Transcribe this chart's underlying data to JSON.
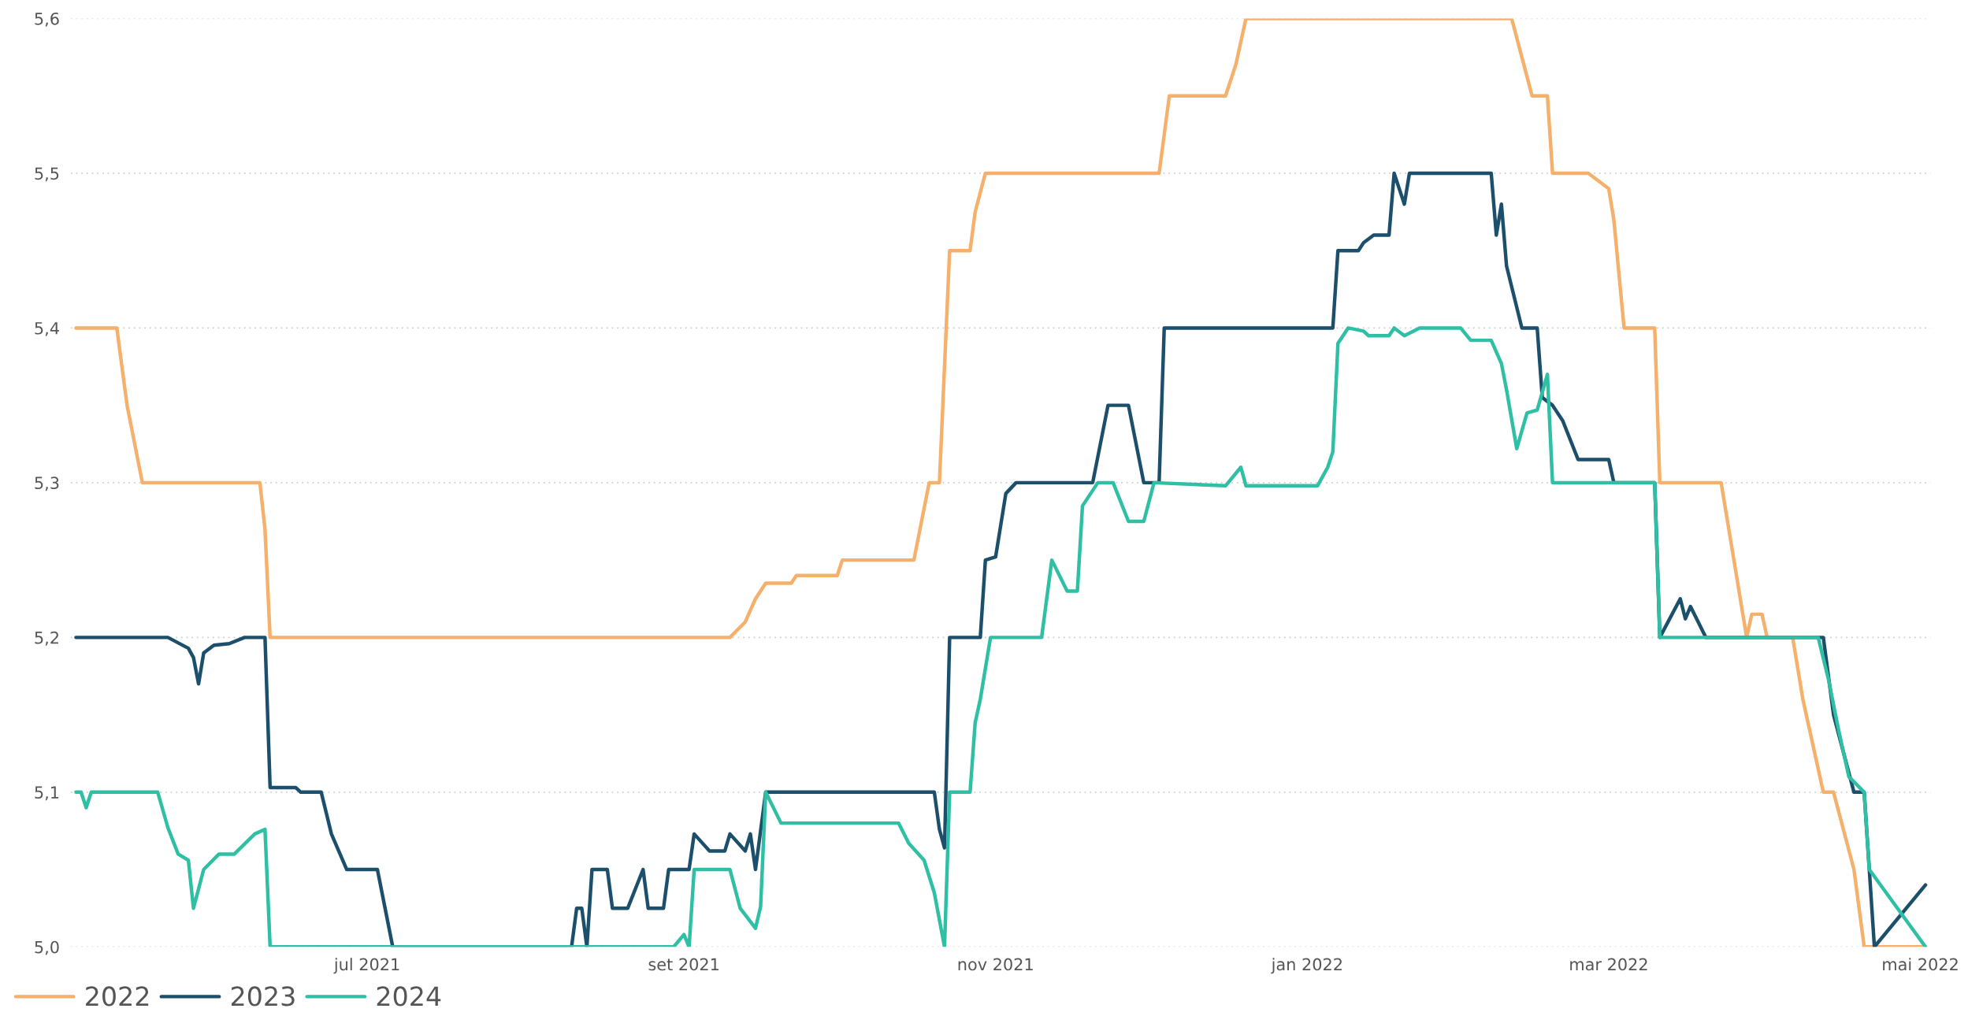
{
  "chart_data": {
    "type": "line",
    "xlim": [
      "2021-05-04",
      "2022-05-03"
    ],
    "xticks": [
      {
        "value": "2021-07-01",
        "label": "jul 2021"
      },
      {
        "value": "2021-09-01",
        "label": "set 2021"
      },
      {
        "value": "2021-11-01",
        "label": "nov 2021"
      },
      {
        "value": "2022-01-01",
        "label": "jan 2022"
      },
      {
        "value": "2022-03-01",
        "label": "mar 2022"
      },
      {
        "value": "2022-05-01",
        "label": "mai 2022"
      }
    ],
    "ylim": [
      5.0,
      5.6
    ],
    "yticks": [
      {
        "value": 5.0,
        "label": "5,0"
      },
      {
        "value": 5.1,
        "label": "5,1"
      },
      {
        "value": 5.2,
        "label": "5,2"
      },
      {
        "value": 5.3,
        "label": "5,3"
      },
      {
        "value": 5.4,
        "label": "5,4"
      },
      {
        "value": 5.5,
        "label": "5,5"
      },
      {
        "value": 5.6,
        "label": "5,6"
      }
    ],
    "grid": "y",
    "legend": "bottom left",
    "marker": "none",
    "line_style": "solid",
    "series": [
      {
        "name": "2022",
        "color": "#f5b06b",
        "x": [
          "2021-05-05",
          "2021-05-13",
          "2021-05-15",
          "2021-05-18",
          "2021-06-10",
          "2021-06-11",
          "2021-06-12",
          "2021-09-10",
          "2021-09-13",
          "2021-09-15",
          "2021-09-17",
          "2021-09-22",
          "2021-09-23",
          "2021-10-01",
          "2021-10-02",
          "2021-10-16",
          "2021-10-19",
          "2021-10-21",
          "2021-10-23",
          "2021-10-27",
          "2021-10-28",
          "2021-10-30",
          "2021-12-03",
          "2021-12-05",
          "2021-12-16",
          "2021-12-18",
          "2021-12-20",
          "2022-02-10",
          "2022-02-12",
          "2022-02-14",
          "2022-02-17",
          "2022-02-18",
          "2022-02-25",
          "2022-03-01",
          "2022-03-02",
          "2022-03-04",
          "2022-03-10",
          "2022-03-11",
          "2022-03-23",
          "2022-03-24",
          "2022-03-26",
          "2022-03-28",
          "2022-03-29",
          "2022-03-31",
          "2022-04-01",
          "2022-04-06",
          "2022-04-08",
          "2022-04-12",
          "2022-04-14",
          "2022-04-18",
          "2022-04-20",
          "2022-05-02"
        ],
        "values": [
          5.4,
          5.4,
          5.35,
          5.3,
          5.3,
          5.27,
          5.2,
          5.2,
          5.21,
          5.225,
          5.235,
          5.235,
          5.24,
          5.24,
          5.25,
          5.25,
          5.3,
          5.3,
          5.45,
          5.45,
          5.475,
          5.5,
          5.5,
          5.55,
          5.55,
          5.57,
          5.6,
          5.6,
          5.575,
          5.55,
          5.55,
          5.5,
          5.5,
          5.49,
          5.47,
          5.4,
          5.4,
          5.3,
          5.3,
          5.28,
          5.24,
          5.2,
          5.215,
          5.215,
          5.2,
          5.2,
          5.16,
          5.1,
          5.1,
          5.05,
          5.0,
          5.0
        ]
      },
      {
        "name": "2023",
        "color": "#1b4f6b",
        "x": [
          "2021-05-05",
          "2021-05-23",
          "2021-05-27",
          "2021-05-28",
          "2021-05-29",
          "2021-05-30",
          "2021-06-01",
          "2021-06-04",
          "2021-06-07",
          "2021-06-11",
          "2021-06-12",
          "2021-06-17",
          "2021-06-18",
          "2021-06-22",
          "2021-06-24",
          "2021-06-27",
          "2021-07-03",
          "2021-07-06",
          "2021-08-10",
          "2021-08-11",
          "2021-08-12",
          "2021-08-13",
          "2021-08-14",
          "2021-08-17",
          "2021-08-18",
          "2021-08-21",
          "2021-08-24",
          "2021-08-25",
          "2021-08-28",
          "2021-08-29",
          "2021-09-02",
          "2021-09-03",
          "2021-09-06",
          "2021-09-09",
          "2021-09-10",
          "2021-09-13",
          "2021-09-14",
          "2021-09-15",
          "2021-09-17",
          "2021-10-20",
          "2021-10-21",
          "2021-10-22",
          "2021-10-23",
          "2021-10-29",
          "2021-10-30",
          "2021-11-01",
          "2021-11-03",
          "2021-11-05",
          "2021-11-20",
          "2021-11-23",
          "2021-11-27",
          "2021-11-30",
          "2021-12-03",
          "2021-12-04",
          "2022-01-06",
          "2022-01-07",
          "2022-01-11",
          "2022-01-12",
          "2022-01-14",
          "2022-01-17",
          "2022-01-18",
          "2022-01-20",
          "2022-01-21",
          "2022-02-06",
          "2022-02-07",
          "2022-02-08",
          "2022-02-09",
          "2022-02-12",
          "2022-02-15",
          "2022-02-16",
          "2022-02-18",
          "2022-02-20",
          "2022-02-23",
          "2022-03-01",
          "2022-03-02",
          "2022-03-10",
          "2022-03-11",
          "2022-03-15",
          "2022-03-16",
          "2022-03-17",
          "2022-03-20",
          "2022-04-12",
          "2022-04-14",
          "2022-04-18",
          "2022-04-20",
          "2022-04-22",
          "2022-05-02"
        ],
        "values": [
          5.2,
          5.2,
          5.193,
          5.187,
          5.17,
          5.19,
          5.195,
          5.196,
          5.2,
          5.2,
          5.103,
          5.103,
          5.1,
          5.1,
          5.073,
          5.05,
          5.05,
          5.0,
          5.0,
          5.025,
          5.025,
          5.0,
          5.05,
          5.05,
          5.025,
          5.025,
          5.05,
          5.025,
          5.025,
          5.05,
          5.05,
          5.073,
          5.062,
          5.062,
          5.073,
          5.062,
          5.073,
          5.05,
          5.1,
          5.1,
          5.076,
          5.064,
          5.2,
          5.2,
          5.25,
          5.252,
          5.293,
          5.3,
          5.3,
          5.35,
          5.35,
          5.3,
          5.3,
          5.4,
          5.4,
          5.45,
          5.45,
          5.455,
          5.46,
          5.46,
          5.5,
          5.48,
          5.5,
          5.5,
          5.46,
          5.48,
          5.44,
          5.4,
          5.4,
          5.355,
          5.35,
          5.34,
          5.315,
          5.315,
          5.3,
          5.3,
          5.2,
          5.225,
          5.212,
          5.22,
          5.2,
          5.2,
          5.15,
          5.1,
          5.1,
          5.0,
          5.04
        ]
      },
      {
        "name": "2024",
        "color": "#2ebfa5",
        "x": [
          "2021-05-05",
          "2021-05-06",
          "2021-05-07",
          "2021-05-08",
          "2021-05-21",
          "2021-05-23",
          "2021-05-25",
          "2021-05-27",
          "2021-05-28",
          "2021-05-30",
          "2021-06-02",
          "2021-06-05",
          "2021-06-09",
          "2021-06-11",
          "2021-06-12",
          "2021-08-30",
          "2021-09-01",
          "2021-09-02",
          "2021-09-03",
          "2021-09-10",
          "2021-09-12",
          "2021-09-15",
          "2021-09-16",
          "2021-09-17",
          "2021-09-20",
          "2021-10-13",
          "2021-10-15",
          "2021-10-18",
          "2021-10-20",
          "2021-10-22",
          "2021-10-23",
          "2021-10-27",
          "2021-10-28",
          "2021-10-29",
          "2021-10-31",
          "2021-11-10",
          "2021-11-12",
          "2021-11-15",
          "2021-11-17",
          "2021-11-18",
          "2021-11-21",
          "2021-11-24",
          "2021-11-27",
          "2021-11-30",
          "2021-12-02",
          "2021-12-16",
          "2021-12-19",
          "2021-12-20",
          "2022-01-03",
          "2022-01-05",
          "2022-01-06",
          "2022-01-07",
          "2022-01-09",
          "2022-01-12",
          "2022-01-13",
          "2022-01-17",
          "2022-01-18",
          "2022-01-20",
          "2022-01-23",
          "2022-01-31",
          "2022-02-02",
          "2022-02-06",
          "2022-02-08",
          "2022-02-09",
          "2022-02-11",
          "2022-02-13",
          "2022-02-15",
          "2022-02-17",
          "2022-02-18",
          "2022-03-10",
          "2022-03-11",
          "2022-04-11",
          "2022-04-13",
          "2022-04-15",
          "2022-04-17",
          "2022-04-20",
          "2022-04-21",
          "2022-05-02"
        ],
        "values": [
          5.1,
          5.1,
          5.09,
          5.1,
          5.1,
          5.077,
          5.06,
          5.056,
          5.025,
          5.05,
          5.06,
          5.06,
          5.073,
          5.076,
          5.0,
          5.0,
          5.008,
          5.0,
          5.05,
          5.05,
          5.025,
          5.012,
          5.026,
          5.1,
          5.08,
          5.08,
          5.067,
          5.056,
          5.035,
          5.0,
          5.1,
          5.1,
          5.145,
          5.16,
          5.2,
          5.2,
          5.25,
          5.23,
          5.23,
          5.285,
          5.3,
          5.3,
          5.275,
          5.275,
          5.3,
          5.298,
          5.31,
          5.298,
          5.298,
          5.31,
          5.32,
          5.39,
          5.4,
          5.398,
          5.395,
          5.395,
          5.4,
          5.395,
          5.4,
          5.4,
          5.392,
          5.392,
          5.377,
          5.36,
          5.322,
          5.345,
          5.347,
          5.37,
          5.3,
          5.3,
          5.2,
          5.2,
          5.173,
          5.14,
          5.11,
          5.1,
          5.05,
          5.0
        ]
      }
    ]
  }
}
